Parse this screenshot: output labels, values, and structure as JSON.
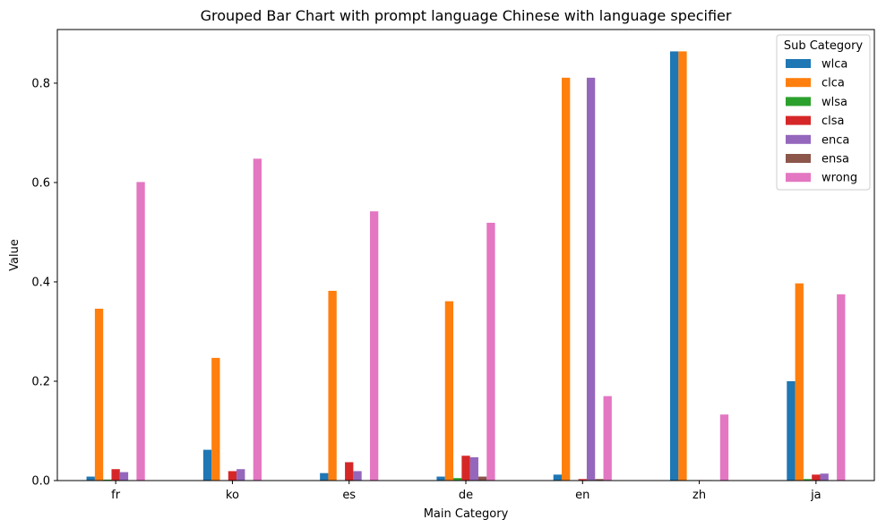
{
  "chart_data": {
    "type": "bar",
    "title": "Grouped Bar Chart with prompt language Chinese with language specifier",
    "xlabel": "Main Category",
    "ylabel": "Value",
    "ylim": [
      0,
      0.908
    ],
    "yticks": [
      0.0,
      0.2,
      0.4,
      0.6,
      0.8
    ],
    "ytick_labels": [
      "0.0",
      "0.2",
      "0.4",
      "0.6",
      "0.8"
    ],
    "grid": false,
    "legend_title": "Sub Category",
    "legend_position": "top-right",
    "categories": [
      "fr",
      "ko",
      "es",
      "de",
      "en",
      "zh",
      "ja"
    ],
    "series": [
      {
        "name": "wlca",
        "color": "#1f77b4",
        "values": [
          0.008,
          0.062,
          0.015,
          0.008,
          0.012,
          0.864,
          0.2
        ]
      },
      {
        "name": "clca",
        "color": "#ff7f0e",
        "values": [
          0.346,
          0.247,
          0.382,
          0.361,
          0.811,
          0.864,
          0.397
        ]
      },
      {
        "name": "wlsa",
        "color": "#2ca02c",
        "values": [
          0.002,
          0.0,
          0.0,
          0.005,
          0.0,
          0.001,
          0.003
        ]
      },
      {
        "name": "clsa",
        "color": "#d62728",
        "values": [
          0.023,
          0.019,
          0.037,
          0.05,
          0.003,
          0.001,
          0.012
        ]
      },
      {
        "name": "enca",
        "color": "#9467bd",
        "values": [
          0.017,
          0.023,
          0.019,
          0.047,
          0.811,
          0.001,
          0.014
        ]
      },
      {
        "name": "ensa",
        "color": "#8c564b",
        "values": [
          0.0,
          0.0,
          0.0,
          0.008,
          0.003,
          0.0,
          0.0
        ]
      },
      {
        "name": "wrong",
        "color": "#e377c2",
        "values": [
          0.601,
          0.648,
          0.542,
          0.519,
          0.17,
          0.133,
          0.375
        ]
      }
    ]
  }
}
